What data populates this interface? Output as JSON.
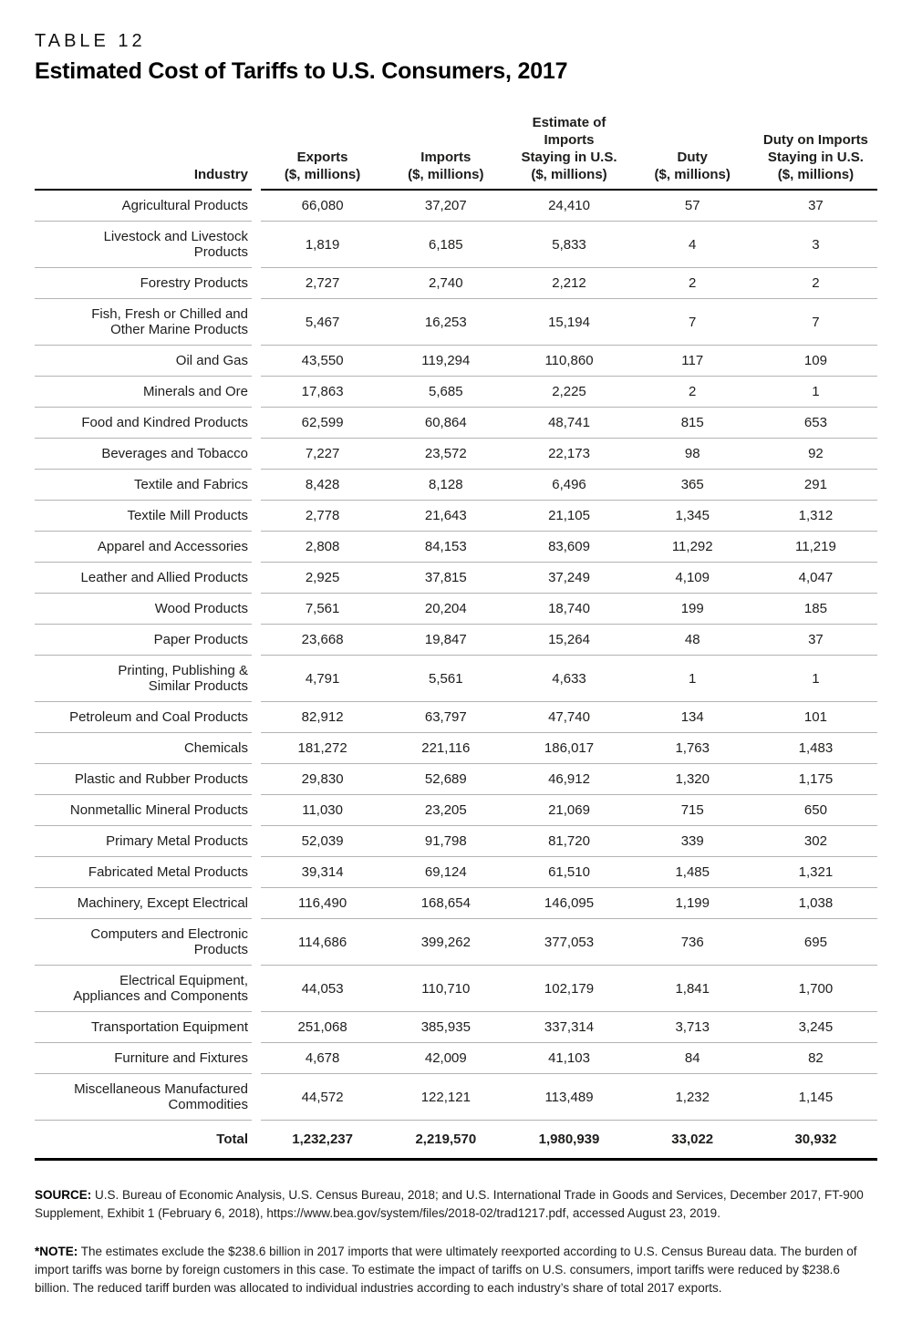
{
  "page": {
    "table_label": "TABLE 12",
    "title": "Estimated Cost of Tariffs to U.S. Consumers, 2017"
  },
  "table": {
    "columns": [
      {
        "id": "industry",
        "lines": [
          "Industry"
        ]
      },
      {
        "id": "exports",
        "lines": [
          "Exports",
          "($, millions)"
        ]
      },
      {
        "id": "imports",
        "lines": [
          "Imports",
          "($, millions)"
        ]
      },
      {
        "id": "imports-staying",
        "lines": [
          "Estimate of",
          "Imports",
          "Staying in U.S.",
          "($, millions)"
        ]
      },
      {
        "id": "duty",
        "lines": [
          "Duty",
          "($, millions)"
        ]
      },
      {
        "id": "duty-staying",
        "lines": [
          "Duty on Imports",
          "Staying in U.S.",
          "($, millions)"
        ]
      }
    ],
    "rows": [
      {
        "lines": [
          "Agricultural Products"
        ],
        "values": [
          "66,080",
          "37,207",
          "24,410",
          "57",
          "37"
        ]
      },
      {
        "lines": [
          "Livestock and Livestock",
          "Products"
        ],
        "values": [
          "1,819",
          "6,185",
          "5,833",
          "4",
          "3"
        ]
      },
      {
        "lines": [
          "Forestry Products"
        ],
        "values": [
          "2,727",
          "2,740",
          "2,212",
          "2",
          "2"
        ]
      },
      {
        "lines": [
          "Fish, Fresh or Chilled and",
          "Other Marine Products"
        ],
        "values": [
          "5,467",
          "16,253",
          "15,194",
          "7",
          "7"
        ]
      },
      {
        "lines": [
          "Oil and Gas"
        ],
        "values": [
          "43,550",
          "119,294",
          "110,860",
          "117",
          "109"
        ]
      },
      {
        "lines": [
          "Minerals and Ore"
        ],
        "values": [
          "17,863",
          "5,685",
          "2,225",
          "2",
          "1"
        ]
      },
      {
        "lines": [
          "Food and Kindred Products"
        ],
        "values": [
          "62,599",
          "60,864",
          "48,741",
          "815",
          "653"
        ]
      },
      {
        "lines": [
          "Beverages and Tobacco"
        ],
        "values": [
          "7,227",
          "23,572",
          "22,173",
          "98",
          "92"
        ]
      },
      {
        "lines": [
          "Textile and Fabrics"
        ],
        "values": [
          "8,428",
          "8,128",
          "6,496",
          "365",
          "291"
        ]
      },
      {
        "lines": [
          "Textile Mill Products"
        ],
        "values": [
          "2,778",
          "21,643",
          "21,105",
          "1,345",
          "1,312"
        ]
      },
      {
        "lines": [
          "Apparel and Accessories"
        ],
        "values": [
          "2,808",
          "84,153",
          "83,609",
          "11,292",
          "11,219"
        ]
      },
      {
        "lines": [
          "Leather and Allied Products"
        ],
        "values": [
          "2,925",
          "37,815",
          "37,249",
          "4,109",
          "4,047"
        ]
      },
      {
        "lines": [
          "Wood Products"
        ],
        "values": [
          "7,561",
          "20,204",
          "18,740",
          "199",
          "185"
        ]
      },
      {
        "lines": [
          "Paper Products"
        ],
        "values": [
          "23,668",
          "19,847",
          "15,264",
          "48",
          "37"
        ]
      },
      {
        "lines": [
          "Printing, Publishing &",
          "Similar Products"
        ],
        "values": [
          "4,791",
          "5,561",
          "4,633",
          "1",
          "1"
        ]
      },
      {
        "lines": [
          "Petroleum and Coal Products"
        ],
        "values": [
          "82,912",
          "63,797",
          "47,740",
          "134",
          "101"
        ]
      },
      {
        "lines": [
          "Chemicals"
        ],
        "values": [
          "181,272",
          "221,116",
          "186,017",
          "1,763",
          "1,483"
        ]
      },
      {
        "lines": [
          "Plastic and Rubber Products"
        ],
        "values": [
          "29,830",
          "52,689",
          "46,912",
          "1,320",
          "1,175"
        ]
      },
      {
        "lines": [
          "Nonmetallic Mineral Products"
        ],
        "values": [
          "11,030",
          "23,205",
          "21,069",
          "715",
          "650"
        ]
      },
      {
        "lines": [
          "Primary Metal Products"
        ],
        "values": [
          "52,039",
          "91,798",
          "81,720",
          "339",
          "302"
        ]
      },
      {
        "lines": [
          "Fabricated Metal Products"
        ],
        "values": [
          "39,314",
          "69,124",
          "61,510",
          "1,485",
          "1,321"
        ]
      },
      {
        "lines": [
          "Machinery, Except Electrical"
        ],
        "values": [
          "116,490",
          "168,654",
          "146,095",
          "1,199",
          "1,038"
        ]
      },
      {
        "lines": [
          "Computers and Electronic",
          "Products"
        ],
        "values": [
          "114,686",
          "399,262",
          "377,053",
          "736",
          "695"
        ]
      },
      {
        "lines": [
          "Electrical Equipment,",
          "Appliances and Components"
        ],
        "values": [
          "44,053",
          "110,710",
          "102,179",
          "1,841",
          "1,700"
        ]
      },
      {
        "lines": [
          "Transportation Equipment"
        ],
        "values": [
          "251,068",
          "385,935",
          "337,314",
          "3,713",
          "3,245"
        ]
      },
      {
        "lines": [
          "Furniture and Fixtures"
        ],
        "values": [
          "4,678",
          "42,009",
          "41,103",
          "84",
          "82"
        ]
      },
      {
        "lines": [
          "Miscellaneous Manufactured",
          "Commodities"
        ],
        "values": [
          "44,572",
          "122,121",
          "113,489",
          "1,232",
          "1,145"
        ]
      }
    ],
    "total": {
      "label": "Total",
      "values": [
        "1,232,237",
        "2,219,570",
        "1,980,939",
        "33,022",
        "30,932"
      ]
    }
  },
  "footer": {
    "source_label": "SOURCE:",
    "source_text": " U.S. Bureau of Economic Analysis, U.S. Census Bureau, 2018; and U.S. International Trade in Goods and Services, December 2017, FT-900 Supplement, Exhibit 1 (February 6, 2018), https://www.bea.gov/system/files/2018-02/trad1217.pdf, accessed August 23, 2019.",
    "note_label": "*NOTE:",
    "note_text": " The estimates exclude the $238.6 billion in 2017 imports that were ultimately reexported according to U.S. Census Bureau data. The burden of import tariffs was borne by foreign customers in this case. To estimate the impact of tariffs on U.S. consumers, import tariffs were reduced by $238.6 billion. The reduced tariff burden was allocated to individual industries according to each industry’s share of total 2017 exports."
  },
  "colors": {
    "text": "#1d1d1b",
    "row_divider": "#b3b3b3",
    "strong_border": "#000000",
    "background": "#ffffff"
  }
}
